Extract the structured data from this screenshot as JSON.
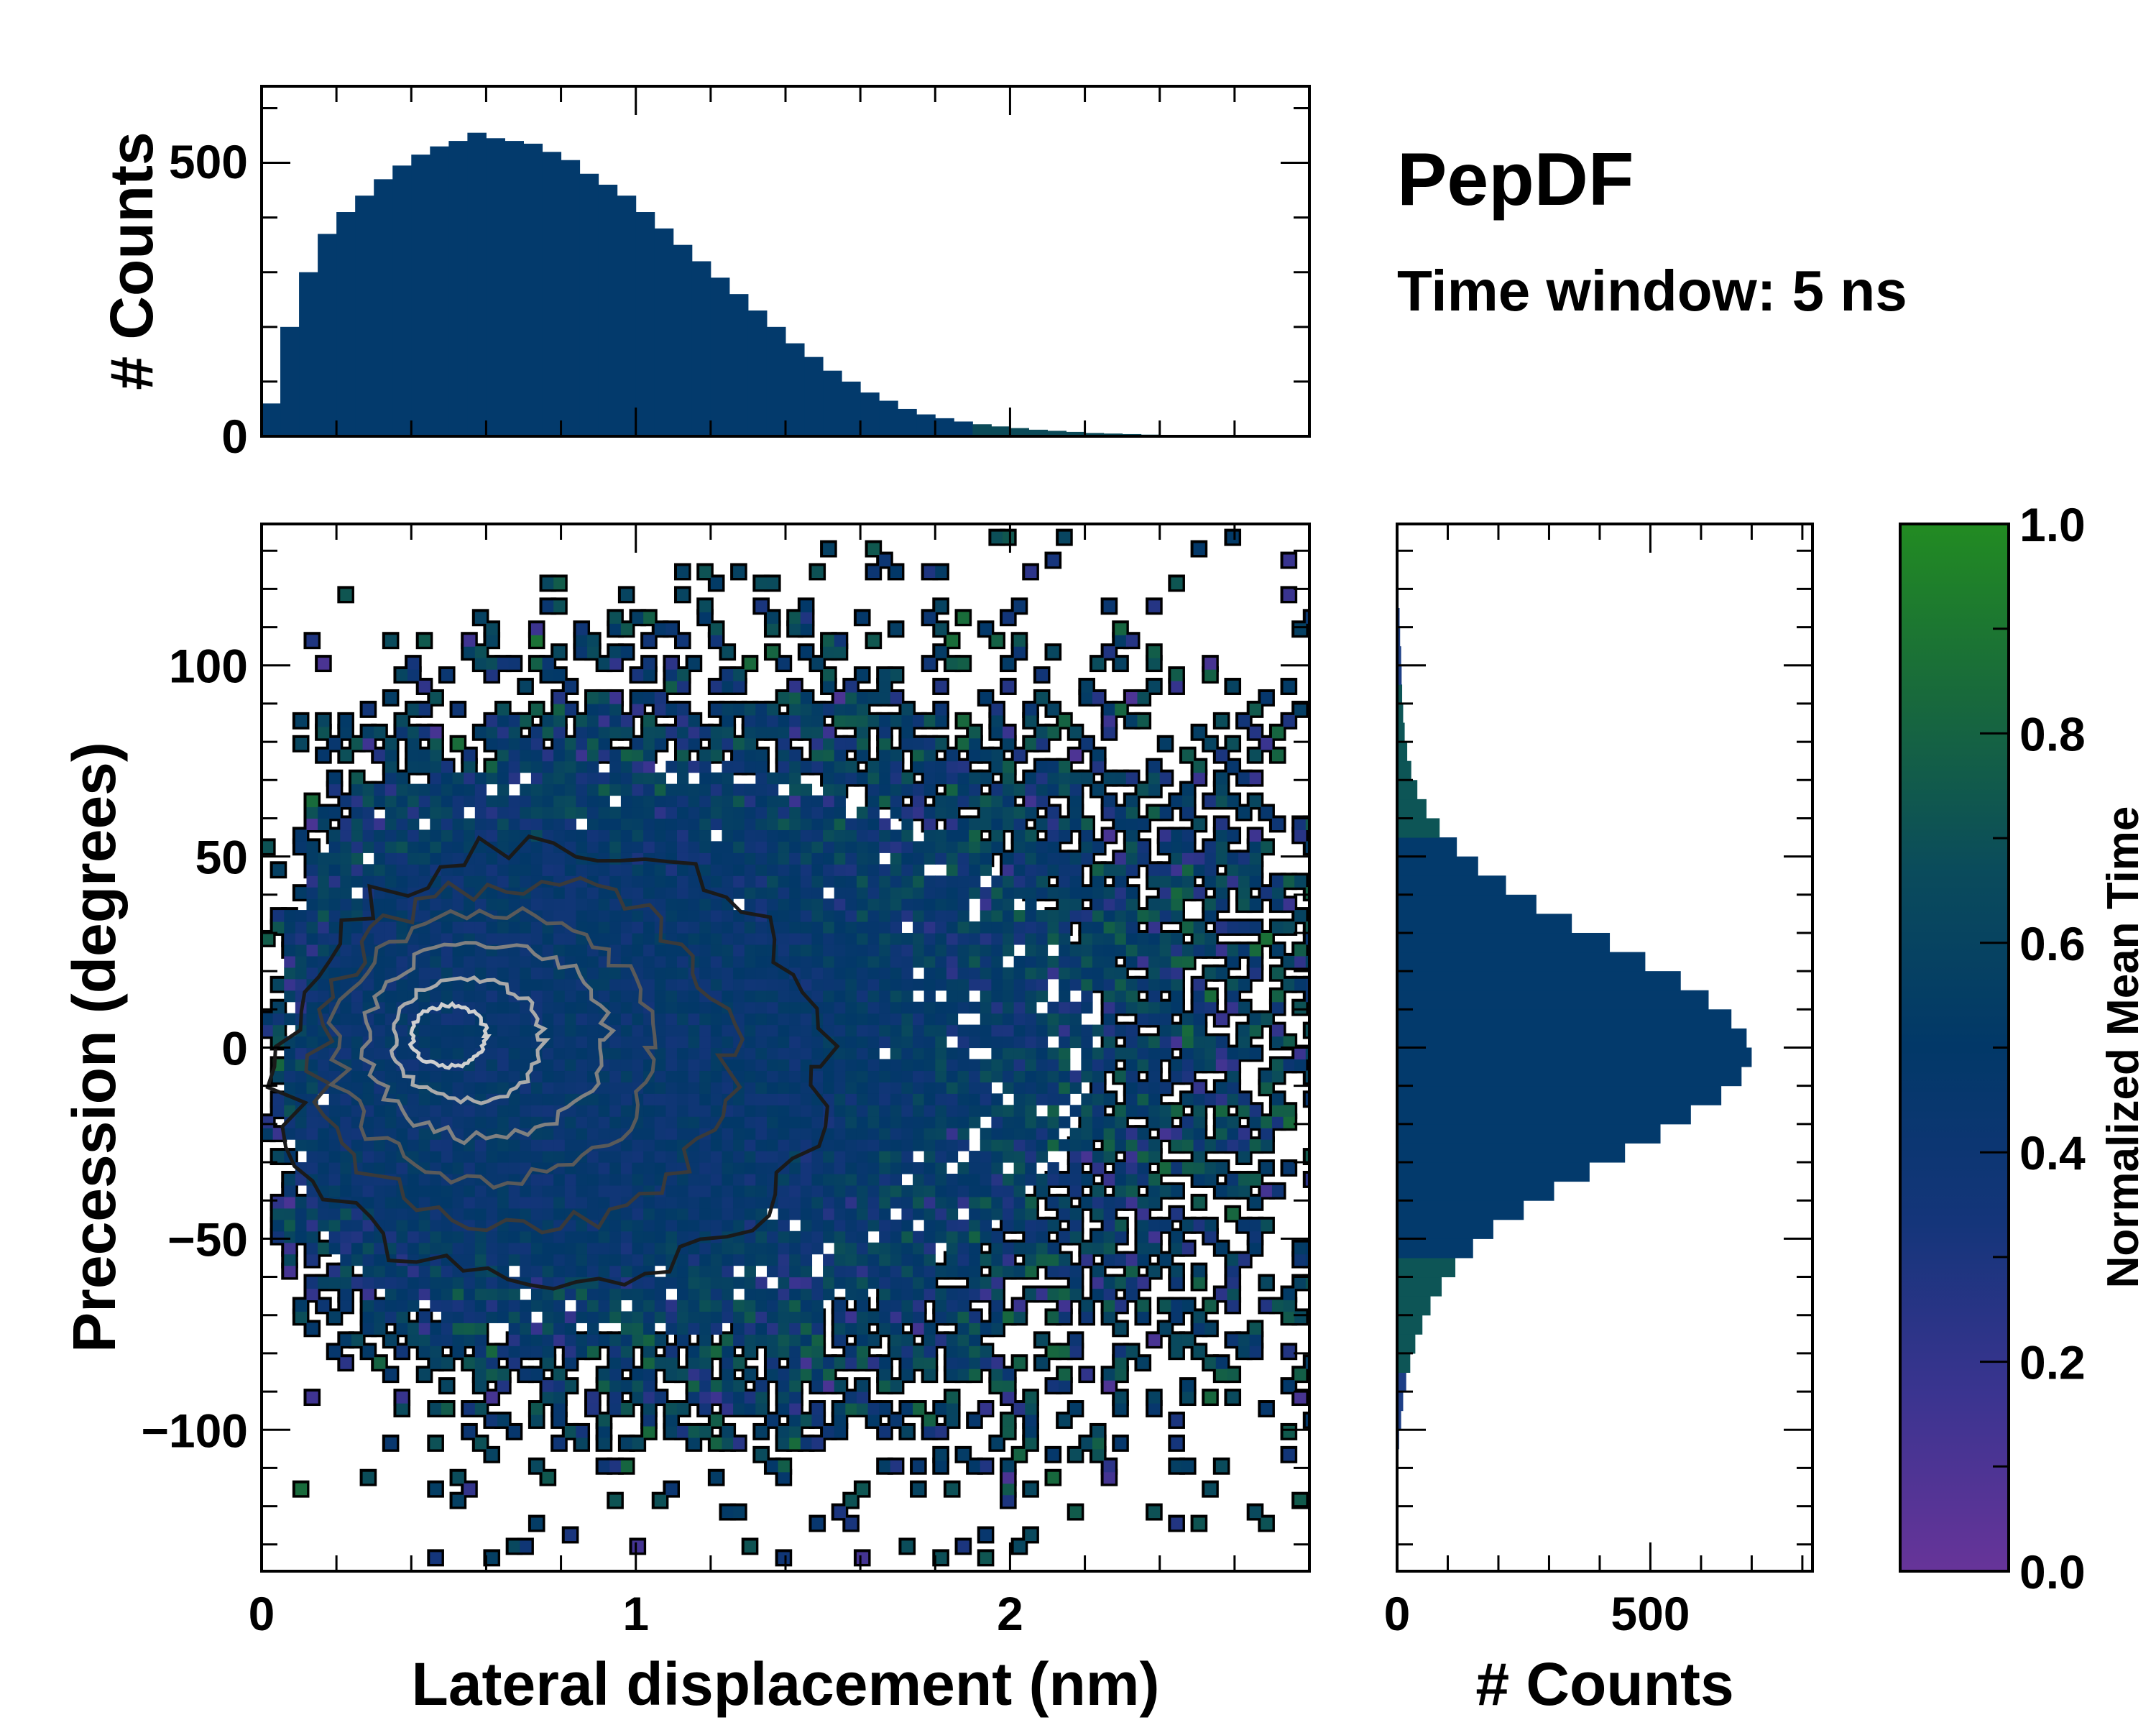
{
  "title": "PepDF",
  "subtitle": "Time window: 5 ns",
  "chart_data": [
    {
      "type": "heatmap",
      "name": "main-2d-histogram",
      "xlabel": "Lateral displacement (nm)",
      "ylabel": "Precession (degrees)",
      "xlim": [
        0,
        2.8
      ],
      "ylim": [
        -137,
        137
      ],
      "xticks": [
        "0",
        "1",
        "2"
      ],
      "xtick_values": [
        0,
        1,
        2
      ],
      "yticks": [
        "100",
        "50",
        "0",
        "−50",
        "−100"
      ],
      "ytick_values": [
        100,
        50,
        0,
        -50,
        -100
      ],
      "color_by": "Normalized Mean Time",
      "density_mode": [
        0.6,
        0
      ],
      "contours": "density contours, black (outer) to light gray (inner)",
      "seed": 7
    },
    {
      "type": "bar",
      "name": "top-marginal-histogram",
      "ylabel": "# Counts",
      "xlim": [
        0,
        2.8
      ],
      "ylim": [
        0,
        640
      ],
      "yticks": [
        "0",
        "500"
      ],
      "ytick_values": [
        0,
        500
      ],
      "bin_width": 0.05,
      "x": [
        0.025,
        0.075,
        0.125,
        0.175,
        0.225,
        0.275,
        0.325,
        0.375,
        0.425,
        0.475,
        0.525,
        0.575,
        0.625,
        0.675,
        0.725,
        0.775,
        0.825,
        0.875,
        0.925,
        0.975,
        1.025,
        1.075,
        1.125,
        1.175,
        1.225,
        1.275,
        1.325,
        1.375,
        1.425,
        1.475,
        1.525,
        1.575,
        1.625,
        1.675,
        1.725,
        1.775,
        1.825,
        1.875,
        1.925,
        1.975,
        2.025,
        2.075,
        2.125,
        2.175,
        2.225,
        2.275,
        2.325,
        2.375,
        2.425,
        2.475,
        2.525,
        2.575,
        2.625,
        2.675,
        2.725,
        2.775
      ],
      "values": [
        60,
        200,
        300,
        370,
        410,
        440,
        470,
        495,
        515,
        530,
        540,
        555,
        545,
        540,
        535,
        520,
        505,
        480,
        460,
        440,
        410,
        380,
        350,
        320,
        290,
        260,
        230,
        200,
        170,
        145,
        120,
        100,
        80,
        65,
        50,
        40,
        33,
        27,
        22,
        18,
        15,
        12,
        10,
        8,
        6,
        5,
        4,
        3,
        2,
        2,
        1,
        1,
        1,
        0,
        0,
        0
      ]
    },
    {
      "type": "bar",
      "name": "right-marginal-histogram",
      "orientation": "horizontal",
      "xlabel": "# Counts",
      "xlim": [
        0,
        820
      ],
      "ylim": [
        -137,
        137
      ],
      "xticks": [
        "0",
        "500"
      ],
      "xtick_values": [
        0,
        500
      ],
      "bin_width": 5,
      "y": [
        -112.5,
        -107.5,
        -102.5,
        -97.5,
        -92.5,
        -87.5,
        -82.5,
        -77.5,
        -72.5,
        -67.5,
        -62.5,
        -57.5,
        -52.5,
        -47.5,
        -42.5,
        -37.5,
        -32.5,
        -27.5,
        -22.5,
        -17.5,
        -12.5,
        -7.5,
        -2.5,
        2.5,
        7.5,
        12.5,
        17.5,
        22.5,
        27.5,
        32.5,
        37.5,
        42.5,
        47.5,
        52.5,
        57.5,
        62.5,
        67.5,
        72.5,
        77.5,
        82.5,
        87.5,
        92.5,
        97.5,
        102.5,
        107.5,
        112.5,
        117.5,
        122.5
      ],
      "values": [
        1,
        2,
        4,
        8,
        12,
        18,
        26,
        36,
        50,
        66,
        88,
        115,
        150,
        190,
        250,
        310,
        380,
        450,
        520,
        580,
        640,
        680,
        700,
        690,
        660,
        615,
        560,
        490,
        420,
        345,
        275,
        215,
        160,
        118,
        84,
        58,
        40,
        28,
        20,
        15,
        12,
        10,
        9,
        8,
        6,
        5,
        3,
        2
      ]
    },
    {
      "type": "colorbar",
      "name": "colorbar",
      "label": "Normalized Mean Time",
      "range": [
        0,
        1
      ],
      "ticks": [
        "0.0",
        "0.2",
        "0.4",
        "0.6",
        "0.8",
        "1.0"
      ],
      "tick_values": [
        0,
        0.2,
        0.4,
        0.6,
        0.8,
        1.0
      ],
      "colormap": [
        "#673499",
        "#3b3490",
        "#14357a",
        "#023868",
        "#0a4b5c",
        "#18693c",
        "#228b22"
      ]
    }
  ]
}
